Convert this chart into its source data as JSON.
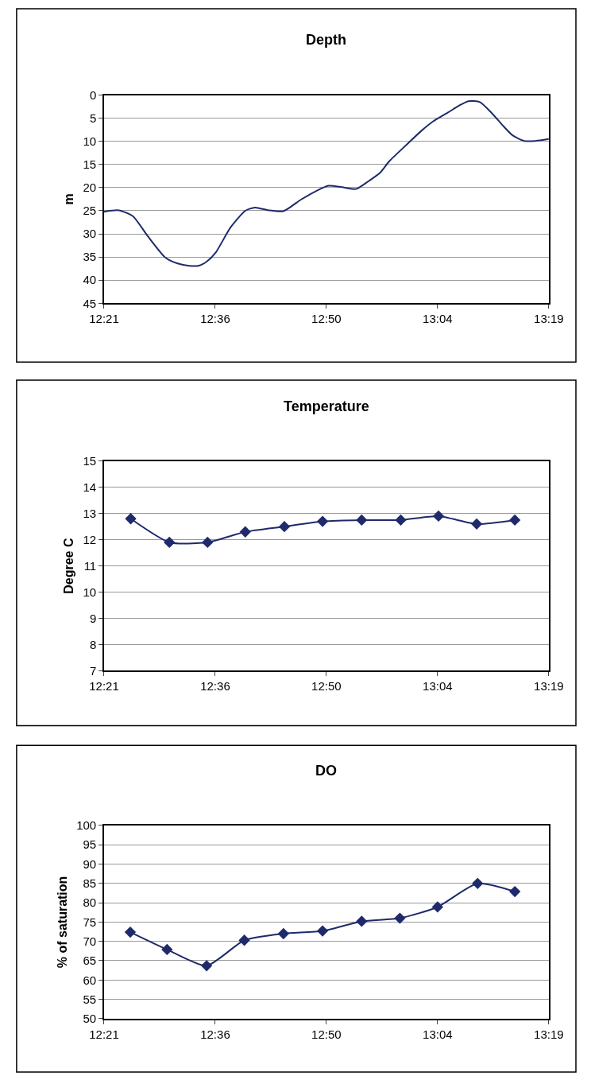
{
  "chart_data": [
    {
      "type": "line",
      "title": "Depth",
      "ylabel": "m",
      "grid": "y",
      "marker": "none",
      "line_style": "solid",
      "xlim": [
        12.35,
        13.3167
      ],
      "xticks": [
        {
          "value": 12.35,
          "label": "12:21"
        },
        {
          "value": 12.5917,
          "label": "12:36"
        },
        {
          "value": 12.8333,
          "label": "12:50"
        },
        {
          "value": 13.075,
          "label": "13:04"
        },
        {
          "value": 13.3167,
          "label": "13:19"
        }
      ],
      "ylim": [
        45,
        0
      ],
      "yticks": [
        0,
        5,
        10,
        15,
        20,
        25,
        30,
        35,
        40,
        45
      ],
      "series": [
        {
          "color": "#1f2a6b",
          "x": [
            12.35,
            12.382,
            12.413,
            12.445,
            12.483,
            12.51,
            12.535,
            12.555,
            12.573,
            12.593,
            12.625,
            12.657,
            12.678,
            12.708,
            12.74,
            12.778,
            12.81,
            12.838,
            12.867,
            12.898,
            12.925,
            12.95,
            12.97,
            13.008,
            13.04,
            13.065,
            13.097,
            13.123,
            13.142,
            13.167,
            13.192,
            13.218,
            13.238,
            13.263,
            13.288,
            13.3167
          ],
          "values": [
            25.2,
            24.9,
            26.2,
            30.5,
            35.1,
            36.4,
            36.9,
            36.9,
            36.0,
            34.0,
            28.6,
            25.0,
            24.3,
            24.9,
            25.1,
            22.6,
            20.8,
            19.6,
            19.9,
            20.3,
            18.6,
            16.8,
            14.3,
            10.7,
            7.7,
            5.7,
            3.8,
            2.2,
            1.3,
            1.5,
            3.8,
            6.7,
            8.7,
            9.9,
            9.9,
            9.5
          ]
        }
      ]
    },
    {
      "type": "line",
      "title": "Temperature",
      "ylabel": "Degree C",
      "grid": "y",
      "marker": "diamond",
      "line_style": "solid",
      "xlim": [
        12.35,
        13.3167
      ],
      "xticks": [
        {
          "value": 12.35,
          "label": "12:21"
        },
        {
          "value": 12.5917,
          "label": "12:36"
        },
        {
          "value": 12.8333,
          "label": "12:50"
        },
        {
          "value": 13.075,
          "label": "13:04"
        },
        {
          "value": 13.3167,
          "label": "13:19"
        }
      ],
      "ylim": [
        7,
        15
      ],
      "yticks": [
        7,
        8,
        9,
        10,
        11,
        12,
        13,
        14,
        15
      ],
      "series": [
        {
          "color": "#1f2a6b",
          "x": [
            12.408,
            12.492,
            12.575,
            12.657,
            12.742,
            12.825,
            12.91,
            12.995,
            13.077,
            13.16,
            13.243
          ],
          "values": [
            12.8,
            11.9,
            11.9,
            12.3,
            12.5,
            12.7,
            12.75,
            12.75,
            12.9,
            12.6,
            12.75
          ]
        }
      ]
    },
    {
      "type": "line",
      "title": "DO",
      "ylabel": "% of saturation",
      "grid": "y",
      "marker": "diamond",
      "line_style": "solid",
      "xlim": [
        12.35,
        13.3167
      ],
      "xticks": [
        {
          "value": 12.35,
          "label": "12:21"
        },
        {
          "value": 12.5917,
          "label": "12:36"
        },
        {
          "value": 12.8333,
          "label": "12:50"
        },
        {
          "value": 13.075,
          "label": "13:04"
        },
        {
          "value": 13.3167,
          "label": "13:19"
        }
      ],
      "ylim": [
        50,
        100
      ],
      "yticks": [
        50,
        55,
        60,
        65,
        70,
        75,
        80,
        85,
        90,
        95,
        100
      ],
      "series": [
        {
          "color": "#1f2a6b",
          "x": [
            12.407,
            12.487,
            12.573,
            12.655,
            12.74,
            12.825,
            12.91,
            12.993,
            13.075,
            13.162,
            13.243
          ],
          "values": [
            72.4,
            67.9,
            63.7,
            70.3,
            72.0,
            72.7,
            75.2,
            76.0,
            78.9,
            85.0,
            82.9
          ]
        }
      ]
    }
  ]
}
